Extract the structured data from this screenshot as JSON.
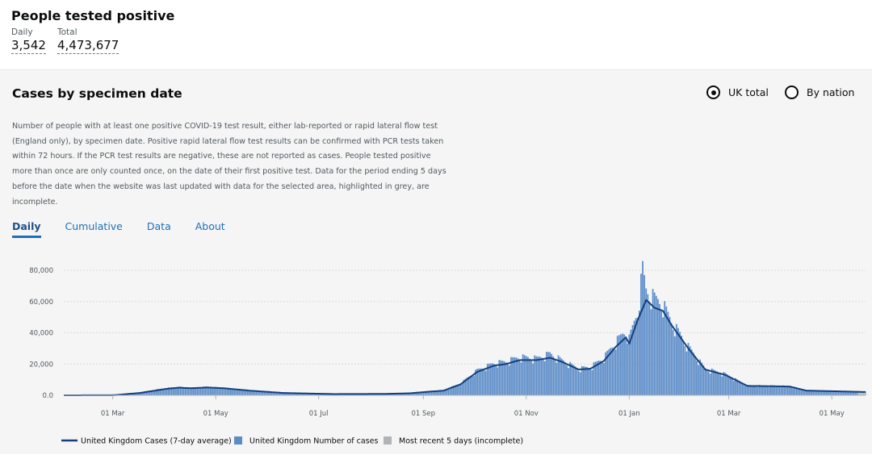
{
  "headline": {
    "title": "People tested positive",
    "daily_label": "Daily",
    "daily_value": "3,542",
    "total_label": "Total",
    "total_value": "4,473,677"
  },
  "card": {
    "title": "Cases by specimen date",
    "radio_uk": "UK total",
    "radio_nation": "By nation",
    "description": "Number of people with at least one positive COVID-19 test result, either lab-reported or rapid lateral flow test (England only), by specimen date. Positive rapid lateral flow test results can be confirmed with PCR tests taken within 72 hours. If the PCR test results are negative, these are not reported as cases. People tested positive more than once are only counted once, on the date of their first positive test. Data for the period ending 5 days before the date when the website was last updated with data for the selected area, highlighted in grey, are incomplete.",
    "tabs": [
      "Daily",
      "Cumulative",
      "Data",
      "About"
    ]
  },
  "colors": {
    "line": "#12407f",
    "bar": "#5b8cc8",
    "incomplete": "#b1b4b6",
    "grid": "#dcdcdc"
  },
  "chart_data": {
    "type": "bar",
    "title": "Cases by specimen date",
    "x_start": "2020-02-01",
    "x_end": "2021-05-21",
    "x_ticks": [
      "01 Mar",
      "01 May",
      "01 Jul",
      "01 Sep",
      "01 Nov",
      "01 Jan",
      "01 Mar",
      "01 May"
    ],
    "x_tick_days": [
      29,
      90,
      151,
      213,
      274,
      335,
      394,
      455
    ],
    "ylim": [
      0,
      80000
    ],
    "y_ticks": [
      "0.0",
      "20,000",
      "40,000",
      "60,000",
      "80,000"
    ],
    "y_tick_values": [
      0,
      20000,
      40000,
      60000,
      80000
    ],
    "incomplete_days": 5,
    "average_anchors": [
      {
        "day": 0,
        "value": 0
      },
      {
        "day": 30,
        "value": 100
      },
      {
        "day": 45,
        "value": 1500
      },
      {
        "day": 60,
        "value": 4000
      },
      {
        "day": 68,
        "value": 4900
      },
      {
        "day": 75,
        "value": 4500
      },
      {
        "day": 85,
        "value": 5000
      },
      {
        "day": 95,
        "value": 4500
      },
      {
        "day": 110,
        "value": 3000
      },
      {
        "day": 130,
        "value": 1500
      },
      {
        "day": 160,
        "value": 800
      },
      {
        "day": 190,
        "value": 900
      },
      {
        "day": 205,
        "value": 1300
      },
      {
        "day": 215,
        "value": 2200
      },
      {
        "day": 225,
        "value": 3000
      },
      {
        "day": 235,
        "value": 7000
      },
      {
        "day": 245,
        "value": 15000
      },
      {
        "day": 255,
        "value": 19000
      },
      {
        "day": 262,
        "value": 20000
      },
      {
        "day": 270,
        "value": 22500
      },
      {
        "day": 280,
        "value": 22500
      },
      {
        "day": 288,
        "value": 24000
      },
      {
        "day": 295,
        "value": 21500
      },
      {
        "day": 305,
        "value": 16500
      },
      {
        "day": 312,
        "value": 17000
      },
      {
        "day": 320,
        "value": 22000
      },
      {
        "day": 327,
        "value": 31000
      },
      {
        "day": 333,
        "value": 37000
      },
      {
        "day": 335,
        "value": 33000
      },
      {
        "day": 340,
        "value": 48000
      },
      {
        "day": 345,
        "value": 61000
      },
      {
        "day": 350,
        "value": 56000
      },
      {
        "day": 355,
        "value": 54000
      },
      {
        "day": 360,
        "value": 45000
      },
      {
        "day": 370,
        "value": 30000
      },
      {
        "day": 380,
        "value": 16500
      },
      {
        "day": 392,
        "value": 13000
      },
      {
        "day": 405,
        "value": 6000
      },
      {
        "day": 420,
        "value": 5800
      },
      {
        "day": 430,
        "value": 5600
      },
      {
        "day": 440,
        "value": 3000
      },
      {
        "day": 460,
        "value": 2500
      },
      {
        "day": 475,
        "value": 2100
      }
    ],
    "daily_anchors": [
      {
        "day": 0,
        "value": 0
      },
      {
        "day": 30,
        "value": 200
      },
      {
        "day": 45,
        "value": 1800
      },
      {
        "day": 60,
        "value": 4500
      },
      {
        "day": 68,
        "value": 5200
      },
      {
        "day": 75,
        "value": 4700
      },
      {
        "day": 85,
        "value": 5300
      },
      {
        "day": 95,
        "value": 4600
      },
      {
        "day": 110,
        "value": 3000
      },
      {
        "day": 130,
        "value": 1500
      },
      {
        "day": 160,
        "value": 800
      },
      {
        "day": 190,
        "value": 900
      },
      {
        "day": 205,
        "value": 1400
      },
      {
        "day": 215,
        "value": 2400
      },
      {
        "day": 225,
        "value": 3200
      },
      {
        "day": 235,
        "value": 7500
      },
      {
        "day": 245,
        "value": 16000
      },
      {
        "day": 255,
        "value": 20500
      },
      {
        "day": 262,
        "value": 21500
      },
      {
        "day": 270,
        "value": 24500
      },
      {
        "day": 280,
        "value": 23500
      },
      {
        "day": 288,
        "value": 26500
      },
      {
        "day": 295,
        "value": 22500
      },
      {
        "day": 305,
        "value": 17000
      },
      {
        "day": 312,
        "value": 18000
      },
      {
        "day": 320,
        "value": 24000
      },
      {
        "day": 327,
        "value": 34000
      },
      {
        "day": 333,
        "value": 41000
      },
      {
        "day": 335,
        "value": 36000
      },
      {
        "day": 340,
        "value": 54000
      },
      {
        "day": 343,
        "value": 81000
      },
      {
        "day": 345,
        "value": 67000
      },
      {
        "day": 350,
        "value": 62000
      },
      {
        "day": 355,
        "value": 58000
      },
      {
        "day": 360,
        "value": 47000
      },
      {
        "day": 370,
        "value": 31000
      },
      {
        "day": 380,
        "value": 17000
      },
      {
        "day": 392,
        "value": 13500
      },
      {
        "day": 405,
        "value": 6200
      },
      {
        "day": 420,
        "value": 6000
      },
      {
        "day": 430,
        "value": 5800
      },
      {
        "day": 440,
        "value": 3000
      },
      {
        "day": 460,
        "value": 2500
      },
      {
        "day": 475,
        "value": 2300
      }
    ],
    "legend": [
      "United Kingdom Cases (7-day average)",
      "United Kingdom Number of cases",
      "Most recent 5 days (incomplete)"
    ]
  }
}
